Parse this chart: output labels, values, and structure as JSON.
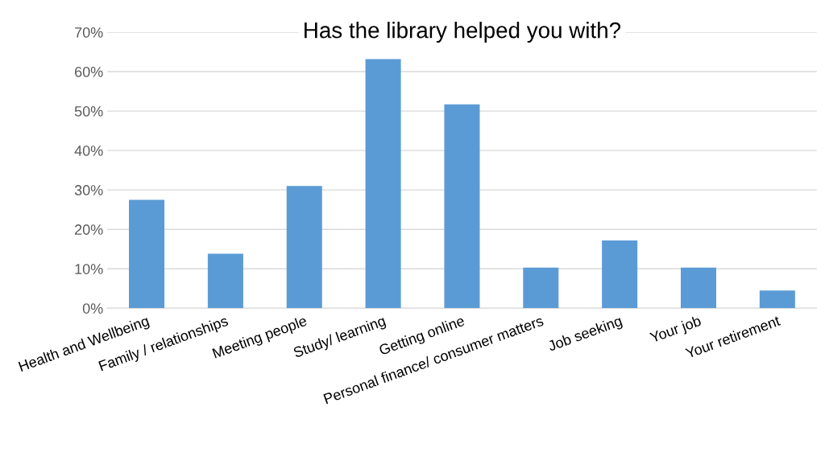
{
  "chart_data": {
    "type": "bar",
    "title": "Has the library helped you with?",
    "categories": [
      "Health and Wellbeing",
      "Family / relationships",
      "Meeting people",
      "Study/ learning",
      "Getting online",
      "Personal finance/ consumer matters",
      "Job seeking",
      "Your job",
      "Your retirement"
    ],
    "values": [
      27.5,
      13.8,
      31.0,
      63.2,
      51.7,
      10.3,
      17.2,
      10.3,
      4.5
    ],
    "color": "#5b9bd5",
    "ylim": [
      0,
      70
    ],
    "yticks": [
      {
        "value": 0,
        "label": "0%"
      },
      {
        "value": 10,
        "label": "10%"
      },
      {
        "value": 20,
        "label": "20%"
      },
      {
        "value": 30,
        "label": "30%"
      },
      {
        "value": 40,
        "label": "40%"
      },
      {
        "value": 50,
        "label": "50%"
      },
      {
        "value": 60,
        "label": "60%"
      },
      {
        "value": 70,
        "label": "70%"
      }
    ],
    "grid": "y",
    "legend": false
  }
}
